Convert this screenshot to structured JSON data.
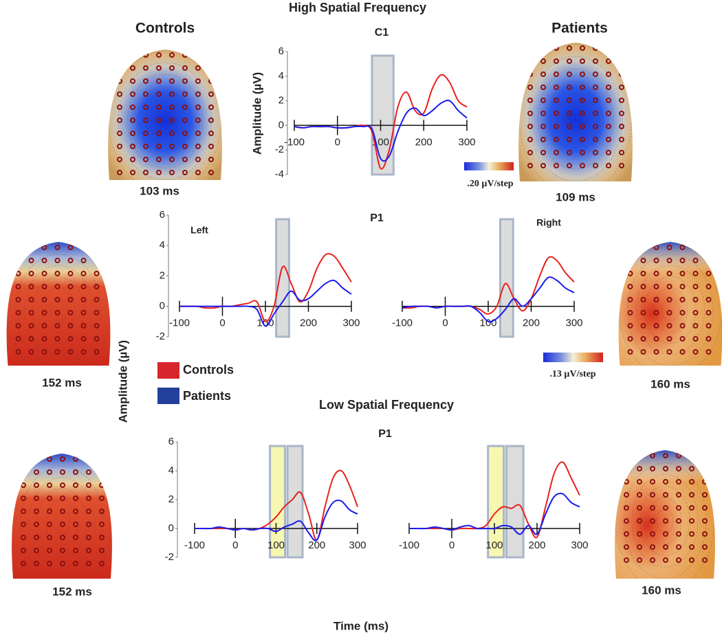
{
  "header": {
    "hsf_title": "High Spatial Frequency",
    "lsf_title": "Low Spatial Frequency",
    "controls": "Controls",
    "patients": "Patients"
  },
  "y_label": "Amplitude (µV)",
  "x_label": "Time (ms)",
  "topomaps": [
    {
      "label": "103 ms"
    },
    {
      "label": "109 ms"
    },
    {
      "label": "152 ms"
    },
    {
      "label": "160 ms"
    },
    {
      "label": "152 ms"
    },
    {
      "label": "160 ms"
    }
  ],
  "colorbars": [
    {
      "label": ".20 µV/step"
    },
    {
      "label": ".13 µV/step"
    }
  ],
  "chart_data": [
    {
      "type": "line",
      "title": "C1",
      "y_label": "Amplitude (µV)",
      "xlim": [
        -100,
        300
      ],
      "ylim": [
        -4,
        6
      ],
      "xticks": [
        -100,
        0,
        100,
        200,
        300
      ],
      "yticks": [
        -4,
        -2,
        0,
        2,
        4,
        6
      ],
      "windows": [
        {
          "range": [
            80,
            130
          ],
          "color": "#dcdcdc"
        }
      ],
      "x": [
        -100,
        -80,
        -60,
        -40,
        -20,
        0,
        20,
        40,
        60,
        80,
        100,
        120,
        140,
        160,
        180,
        200,
        220,
        240,
        260,
        280,
        300
      ],
      "series": [
        {
          "name": "Controls",
          "color": "#e8201c",
          "values": [
            -0.1,
            -0.2,
            -0.1,
            -0.1,
            -0.1,
            -0.2,
            -0.2,
            -0.1,
            0,
            -0.5,
            -3.5,
            -2,
            1.5,
            2.7,
            1.2,
            1.0,
            3,
            4.1,
            3.5,
            2,
            1.5
          ]
        },
        {
          "name": "Patients",
          "color": "#1a1aef",
          "values": [
            -0.1,
            -0.2,
            -0.1,
            -0.1,
            -0.1,
            -0.2,
            -0.2,
            -0.1,
            -0.1,
            -0.3,
            -2.7,
            -2.5,
            -0.5,
            1.0,
            1.4,
            0.8,
            1.2,
            1.8,
            2.0,
            1.2,
            0.6
          ]
        }
      ]
    },
    {
      "type": "line",
      "title": "P1",
      "panel": "Left",
      "xlim": [
        -100,
        300
      ],
      "ylim": [
        -2,
        6
      ],
      "xticks": [
        -100,
        0,
        100,
        200,
        300
      ],
      "yticks": [
        -2,
        0,
        2,
        4,
        6
      ],
      "windows": [
        {
          "range": [
            125,
            155
          ],
          "color": "#dcdcdc"
        }
      ],
      "x": [
        -100,
        -80,
        -60,
        -40,
        -20,
        0,
        20,
        40,
        60,
        80,
        100,
        120,
        140,
        160,
        180,
        200,
        220,
        240,
        260,
        280,
        300
      ],
      "series": [
        {
          "name": "Controls",
          "color": "#e8201c",
          "values": [
            0,
            0,
            0,
            -0.1,
            -0.1,
            0,
            0,
            0.1,
            0.2,
            0.3,
            -1.0,
            0,
            2.6,
            1.5,
            0.3,
            1.0,
            2.5,
            3.4,
            3.3,
            2.5,
            1.6
          ]
        },
        {
          "name": "Patients",
          "color": "#1a1aef",
          "values": [
            0,
            0,
            0,
            0,
            0,
            0,
            0,
            0,
            0,
            -0.2,
            -1.3,
            -0.5,
            0.3,
            1.0,
            0.4,
            0.5,
            1.0,
            1.5,
            1.7,
            1.2,
            0.8
          ]
        }
      ]
    },
    {
      "type": "line",
      "panel": "Right",
      "xlim": [
        -100,
        300
      ],
      "ylim": [
        -2,
        6
      ],
      "xticks": [
        -100,
        0,
        100,
        200,
        300
      ],
      "windows": [
        {
          "range": [
            128,
            158
          ],
          "color": "#dcdcdc"
        }
      ],
      "x": [
        -100,
        -80,
        -60,
        -40,
        -20,
        0,
        20,
        40,
        60,
        80,
        100,
        120,
        140,
        160,
        180,
        200,
        220,
        240,
        260,
        280,
        300
      ],
      "series": [
        {
          "name": "Controls",
          "color": "#e8201c",
          "values": [
            -0.1,
            -0.1,
            0,
            0,
            -0.1,
            0,
            0,
            0,
            0,
            -0.2,
            -0.5,
            0,
            1.5,
            0.5,
            -0.3,
            0.5,
            2.0,
            3.2,
            3.0,
            2.2,
            1.6
          ]
        },
        {
          "name": "Patients",
          "color": "#1a1aef",
          "values": [
            -0.1,
            0,
            0,
            0,
            -0.1,
            0,
            0,
            0,
            0,
            -0.4,
            -1,
            -0.8,
            -0.2,
            0.5,
            0,
            0.5,
            1.2,
            1.9,
            1.7,
            1.2,
            0.9
          ]
        }
      ]
    },
    {
      "type": "line",
      "title": "P1",
      "xlim": [
        -100,
        300
      ],
      "ylim": [
        -2,
        6
      ],
      "xticks": [
        -100,
        0,
        100,
        200,
        300
      ],
      "yticks": [
        -2,
        0,
        2,
        4,
        6
      ],
      "windows": [
        {
          "range": [
            85,
            122
          ],
          "color": "#f6f7b0"
        },
        {
          "range": [
            128,
            165
          ],
          "color": "#dcdcdc"
        }
      ],
      "x": [
        -100,
        -80,
        -60,
        -40,
        -20,
        0,
        20,
        40,
        60,
        80,
        100,
        120,
        140,
        160,
        180,
        200,
        220,
        240,
        260,
        280,
        300
      ],
      "series": [
        {
          "name": "Controls",
          "color": "#e8201c",
          "values": [
            0,
            0,
            0,
            0,
            0,
            -0.1,
            0,
            -0.1,
            0,
            0.3,
            0.8,
            1.5,
            2.0,
            2.5,
            1.0,
            -0.8,
            1.5,
            3.5,
            4.0,
            3.0,
            1.5
          ]
        },
        {
          "name": "Patients",
          "color": "#1a1aef",
          "values": [
            0,
            0,
            0,
            0.1,
            0,
            -0.1,
            0,
            -0.1,
            0,
            0,
            -0.2,
            0.1,
            0.3,
            0.5,
            -0.3,
            -0.8,
            0.8,
            1.8,
            1.9,
            1.3,
            1.0
          ]
        }
      ]
    },
    {
      "type": "line",
      "xlim": [
        -100,
        300
      ],
      "ylim": [
        -2,
        6
      ],
      "xticks": [
        -100,
        0,
        100,
        200,
        300
      ],
      "windows": [
        {
          "range": [
            85,
            122
          ],
          "color": "#f6f7b0"
        },
        {
          "range": [
            128,
            168
          ],
          "color": "#dcdcdc"
        }
      ],
      "x": [
        -100,
        -80,
        -60,
        -40,
        -20,
        0,
        20,
        40,
        60,
        80,
        100,
        120,
        140,
        160,
        180,
        200,
        220,
        240,
        260,
        280,
        300
      ],
      "series": [
        {
          "name": "Controls",
          "color": "#e8201c",
          "values": [
            0,
            0,
            0,
            0,
            0,
            -0.1,
            0,
            0,
            0,
            0.2,
            1.0,
            1.5,
            1.4,
            1.6,
            0.3,
            -0.6,
            1.5,
            3.8,
            4.6,
            3.5,
            2.3
          ]
        },
        {
          "name": "Patients",
          "color": "#1a1aef",
          "values": [
            0,
            0,
            0,
            0.1,
            0,
            -0.1,
            0.1,
            0.2,
            0,
            0,
            0,
            0.2,
            0.1,
            -0.4,
            0.2,
            -0.4,
            1.0,
            2.2,
            2.4,
            1.8,
            1.5
          ]
        }
      ]
    }
  ]
}
